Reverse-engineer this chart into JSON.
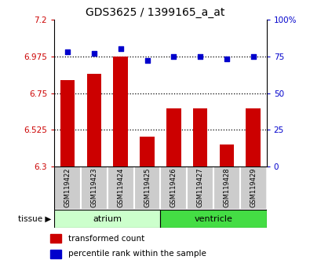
{
  "title": "GDS3625 / 1399165_a_at",
  "samples": [
    "GSM119422",
    "GSM119423",
    "GSM119424",
    "GSM119425",
    "GSM119426",
    "GSM119427",
    "GSM119428",
    "GSM119429"
  ],
  "transformed_count": [
    6.83,
    6.87,
    6.975,
    6.485,
    6.655,
    6.655,
    6.435,
    6.655
  ],
  "percentile_rank": [
    78,
    77,
    80,
    72,
    75,
    75,
    73,
    75
  ],
  "ylim_left": [
    6.3,
    7.2
  ],
  "ylim_right": [
    0,
    100
  ],
  "yticks_left": [
    6.3,
    6.525,
    6.75,
    6.975,
    7.2
  ],
  "yticks_right": [
    0,
    25,
    50,
    75,
    100
  ],
  "ytick_labels_left": [
    "6.3",
    "6.525",
    "6.75",
    "6.975",
    "7.2"
  ],
  "ytick_labels_right": [
    "0",
    "25",
    "50",
    "75",
    "100%"
  ],
  "hlines": [
    6.975,
    6.75,
    6.525
  ],
  "tissue_groups": [
    {
      "label": "atrium",
      "start": 0,
      "end": 3,
      "color": "#CCFFCC"
    },
    {
      "label": "ventricle",
      "start": 4,
      "end": 7,
      "color": "#44DD44"
    }
  ],
  "bar_color": "#CC0000",
  "dot_color": "#0000CC",
  "bar_width": 0.55,
  "tick_label_color_left": "#CC0000",
  "tick_label_color_right": "#0000CC",
  "sample_bg": "#CCCCCC",
  "legend_red_label": "transformed count",
  "legend_blue_label": "percentile rank within the sample"
}
